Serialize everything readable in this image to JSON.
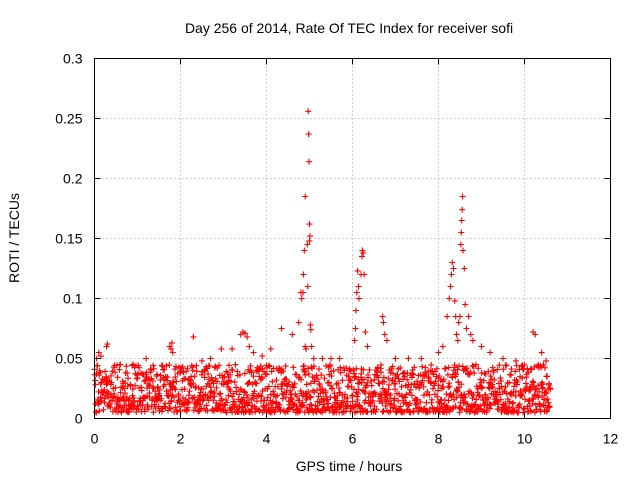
{
  "chart_data": {
    "type": "scatter",
    "title": "Day 256 of 2014, Rate Of TEC Index for receiver sofi",
    "xlabel": "GPS time / hours",
    "ylabel": "ROTI / TECUs",
    "xlim": [
      0,
      12
    ],
    "ylim": [
      0,
      0.3
    ],
    "xticks": [
      0,
      2,
      4,
      6,
      8,
      10,
      12
    ],
    "yticks": [
      0,
      0.05,
      0.1,
      0.15,
      0.2,
      0.25,
      0.3
    ],
    "ytick_labels": [
      "0",
      "0.05",
      "0.1",
      "0.15",
      "0.2",
      "0.25",
      "0.3"
    ],
    "grid": true,
    "marker": "+",
    "color": "#ff0000",
    "series": [
      {
        "name": "ROTI",
        "baseline": {
          "x_start": 0.0,
          "x_end": 10.6,
          "y_min": 0.005,
          "y_max": 0.045
        },
        "points": [
          [
            0.05,
            0.05
          ],
          [
            0.1,
            0.055
          ],
          [
            0.15,
            0.052
          ],
          [
            0.28,
            0.06
          ],
          [
            0.3,
            0.062
          ],
          [
            0.6,
            0.045
          ],
          [
            0.9,
            0.045
          ],
          [
            1.2,
            0.05
          ],
          [
            1.75,
            0.06
          ],
          [
            1.78,
            0.058
          ],
          [
            1.8,
            0.063
          ],
          [
            1.82,
            0.055
          ],
          [
            2.3,
            0.068
          ],
          [
            2.5,
            0.048
          ],
          [
            2.7,
            0.05
          ],
          [
            2.95,
            0.058
          ],
          [
            3.2,
            0.058
          ],
          [
            3.4,
            0.07
          ],
          [
            3.45,
            0.072
          ],
          [
            3.5,
            0.071
          ],
          [
            3.55,
            0.068
          ],
          [
            3.6,
            0.06
          ],
          [
            3.7,
            0.055
          ],
          [
            3.9,
            0.052
          ],
          [
            4.1,
            0.058
          ],
          [
            4.35,
            0.075
          ],
          [
            4.6,
            0.07
          ],
          [
            4.75,
            0.08
          ],
          [
            4.8,
            0.105
          ],
          [
            4.82,
            0.1
          ],
          [
            4.85,
            0.105
          ],
          [
            4.86,
            0.12
          ],
          [
            4.88,
            0.14
          ],
          [
            4.9,
            0.185
          ],
          [
            4.9,
            0.06
          ],
          [
            4.92,
            0.058
          ],
          [
            4.95,
            0.145
          ],
          [
            4.96,
            0.11
          ],
          [
            4.97,
            0.256
          ],
          [
            4.98,
            0.237
          ],
          [
            4.99,
            0.214
          ],
          [
            5.0,
            0.162
          ],
          [
            5.0,
            0.148
          ],
          [
            5.01,
            0.152
          ],
          [
            5.02,
            0.078
          ],
          [
            5.03,
            0.074
          ],
          [
            5.05,
            0.06
          ],
          [
            5.1,
            0.05
          ],
          [
            5.3,
            0.05
          ],
          [
            5.5,
            0.05
          ],
          [
            5.7,
            0.05
          ],
          [
            6.05,
            0.065
          ],
          [
            6.07,
            0.075
          ],
          [
            6.08,
            0.09
          ],
          [
            6.1,
            0.105
          ],
          [
            6.12,
            0.123
          ],
          [
            6.14,
            0.11
          ],
          [
            6.15,
            0.1
          ],
          [
            6.2,
            0.12
          ],
          [
            6.22,
            0.135
          ],
          [
            6.23,
            0.14
          ],
          [
            6.25,
            0.138
          ],
          [
            6.27,
            0.12
          ],
          [
            6.3,
            0.072
          ],
          [
            6.35,
            0.06
          ],
          [
            6.7,
            0.085
          ],
          [
            6.72,
            0.08
          ],
          [
            6.75,
            0.07
          ],
          [
            6.8,
            0.065
          ],
          [
            7.0,
            0.05
          ],
          [
            7.3,
            0.05
          ],
          [
            7.6,
            0.05
          ],
          [
            8.0,
            0.055
          ],
          [
            8.1,
            0.06
          ],
          [
            8.2,
            0.085
          ],
          [
            8.25,
            0.1
          ],
          [
            8.28,
            0.11
          ],
          [
            8.3,
            0.12
          ],
          [
            8.32,
            0.13
          ],
          [
            8.35,
            0.125
          ],
          [
            8.38,
            0.098
          ],
          [
            8.4,
            0.085
          ],
          [
            8.42,
            0.07
          ],
          [
            8.45,
            0.065
          ],
          [
            8.47,
            0.08
          ],
          [
            8.5,
            0.085
          ],
          [
            8.52,
            0.145
          ],
          [
            8.53,
            0.155
          ],
          [
            8.54,
            0.165
          ],
          [
            8.55,
            0.174
          ],
          [
            8.56,
            0.185
          ],
          [
            8.57,
            0.14
          ],
          [
            8.6,
            0.125
          ],
          [
            8.62,
            0.095
          ],
          [
            8.65,
            0.075
          ],
          [
            8.7,
            0.085
          ],
          [
            8.75,
            0.07
          ],
          [
            8.8,
            0.065
          ],
          [
            9.0,
            0.06
          ],
          [
            9.2,
            0.055
          ],
          [
            9.5,
            0.05
          ],
          [
            9.8,
            0.048
          ],
          [
            10.2,
            0.072
          ],
          [
            10.25,
            0.07
          ],
          [
            10.4,
            0.055
          ],
          [
            10.5,
            0.048
          ]
        ]
      }
    ]
  }
}
